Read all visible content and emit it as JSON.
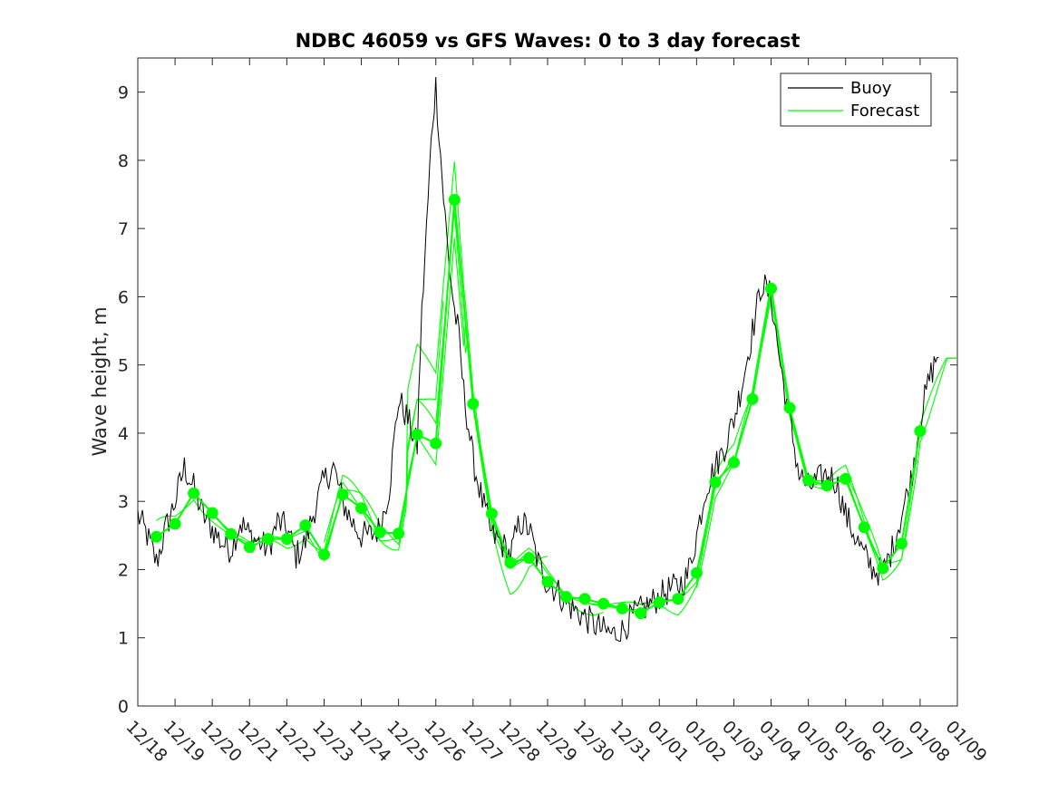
{
  "chart_data": {
    "type": "line",
    "title": "NDBC 46059 vs GFS Waves: 0 to 3 day forecast",
    "xlabel": "",
    "ylabel": "Wave height, m",
    "xlim": [
      0,
      22
    ],
    "ylim": [
      0,
      9.5
    ],
    "yticks": [
      0,
      1,
      2,
      3,
      4,
      5,
      6,
      7,
      8,
      9
    ],
    "ytick_labels": [
      "0",
      "1",
      "2",
      "3",
      "4",
      "5",
      "6",
      "7",
      "8",
      "9"
    ],
    "xticks": [
      0,
      1,
      2,
      3,
      4,
      5,
      6,
      7,
      8,
      9,
      10,
      11,
      12,
      13,
      14,
      15,
      16,
      17,
      18,
      19,
      20,
      21,
      22
    ],
    "xtick_labels": [
      "12/18",
      "12/19",
      "12/20",
      "12/21",
      "12/22",
      "12/23",
      "12/24",
      "12/25",
      "12/26",
      "12/27",
      "12/28",
      "12/29",
      "12/30",
      "12/31",
      "01/01",
      "01/02",
      "01/03",
      "01/04",
      "01/05",
      "01/06",
      "01/07",
      "01/08",
      "01/09"
    ],
    "x_units": "days since 12/18 00:00",
    "legend": {
      "position": "top-right",
      "entries": [
        {
          "label": "Buoy",
          "color": "#000000"
        },
        {
          "label": "Forecast",
          "color": "#00ff00"
        }
      ]
    },
    "series": [
      {
        "name": "Buoy",
        "color": "#000000",
        "x": [
          0,
          0.25,
          0.5,
          0.75,
          1.0,
          1.25,
          1.5,
          1.75,
          2.0,
          2.25,
          2.5,
          2.75,
          3.0,
          3.25,
          3.5,
          3.75,
          4.0,
          4.25,
          4.5,
          4.75,
          5.0,
          5.25,
          5.5,
          5.75,
          6.0,
          6.25,
          6.5,
          6.75,
          7.0,
          7.25,
          7.5,
          7.6,
          7.75,
          7.9,
          8.0,
          8.2,
          8.35,
          8.5,
          8.6,
          8.75,
          9.0,
          9.25,
          9.5,
          9.75,
          10.0,
          10.25,
          10.5,
          10.75,
          11.0,
          11.25,
          11.5,
          11.75,
          12.0,
          12.25,
          12.5,
          12.75,
          13.0,
          13.25,
          13.5,
          13.75,
          14.0,
          14.25,
          14.5,
          14.75,
          15.0,
          15.25,
          15.5,
          15.75,
          16.0,
          16.25,
          16.5,
          16.75,
          17.0,
          17.25,
          17.5,
          17.75,
          18.0,
          18.25,
          18.5,
          18.75,
          19.0,
          19.25,
          19.5,
          19.75,
          20.0,
          20.25,
          20.5,
          20.75,
          21.0,
          21.25,
          21.5
        ],
        "values": [
          2.8,
          2.5,
          2.1,
          2.6,
          3.0,
          3.5,
          3.2,
          2.8,
          2.6,
          2.4,
          2.3,
          2.7,
          2.5,
          2.4,
          2.3,
          2.7,
          2.6,
          2.2,
          2.4,
          2.9,
          3.3,
          3.5,
          3.0,
          2.7,
          2.5,
          2.5,
          2.6,
          3.2,
          4.5,
          4.2,
          3.8,
          5.5,
          7.0,
          8.5,
          9.1,
          7.5,
          6.5,
          5.8,
          5.5,
          4.6,
          3.6,
          3.0,
          2.5,
          2.4,
          2.2,
          2.7,
          2.6,
          2.1,
          1.8,
          1.7,
          1.5,
          1.4,
          1.3,
          1.2,
          1.1,
          1.05,
          1.1,
          1.3,
          1.4,
          1.5,
          1.6,
          1.7,
          1.75,
          1.9,
          2.5,
          3.2,
          3.5,
          3.8,
          4.2,
          4.8,
          5.5,
          6.2,
          6.0,
          5.0,
          4.2,
          3.4,
          3.2,
          3.3,
          3.4,
          3.3,
          2.8,
          2.5,
          2.2,
          2.0,
          1.95,
          2.3,
          2.8,
          3.3,
          4.2,
          4.8,
          5.2
        ]
      },
      {
        "name": "Forecast",
        "color": "#00ff00",
        "x": [
          0.5,
          1.0,
          1.5,
          2.0,
          2.5,
          3.0,
          3.5,
          4.0,
          4.5,
          5.0,
          5.5,
          6.0,
          6.5,
          7.0,
          7.5,
          8.0,
          8.5,
          9.0,
          9.5,
          10.0,
          10.5,
          11.0,
          11.5,
          12.0,
          12.5,
          13.0,
          13.5,
          14.0,
          14.5,
          15.0,
          15.5,
          16.0,
          16.5,
          17.0,
          17.5,
          18.0,
          18.5,
          19.0,
          19.5,
          20.0,
          20.5,
          21.0
        ],
        "values": [
          2.48,
          2.67,
          3.12,
          2.83,
          2.52,
          2.33,
          2.45,
          2.45,
          2.65,
          2.22,
          3.1,
          2.9,
          2.55,
          2.53,
          3.98,
          3.85,
          7.42,
          4.43,
          2.82,
          2.1,
          2.17,
          1.82,
          1.6,
          1.57,
          1.5,
          1.43,
          1.36,
          1.52,
          1.57,
          1.95,
          3.28,
          3.57,
          4.5,
          6.12,
          4.37,
          3.31,
          3.23,
          3.33,
          2.62,
          2.02,
          2.38,
          4.03
        ]
      }
    ]
  }
}
